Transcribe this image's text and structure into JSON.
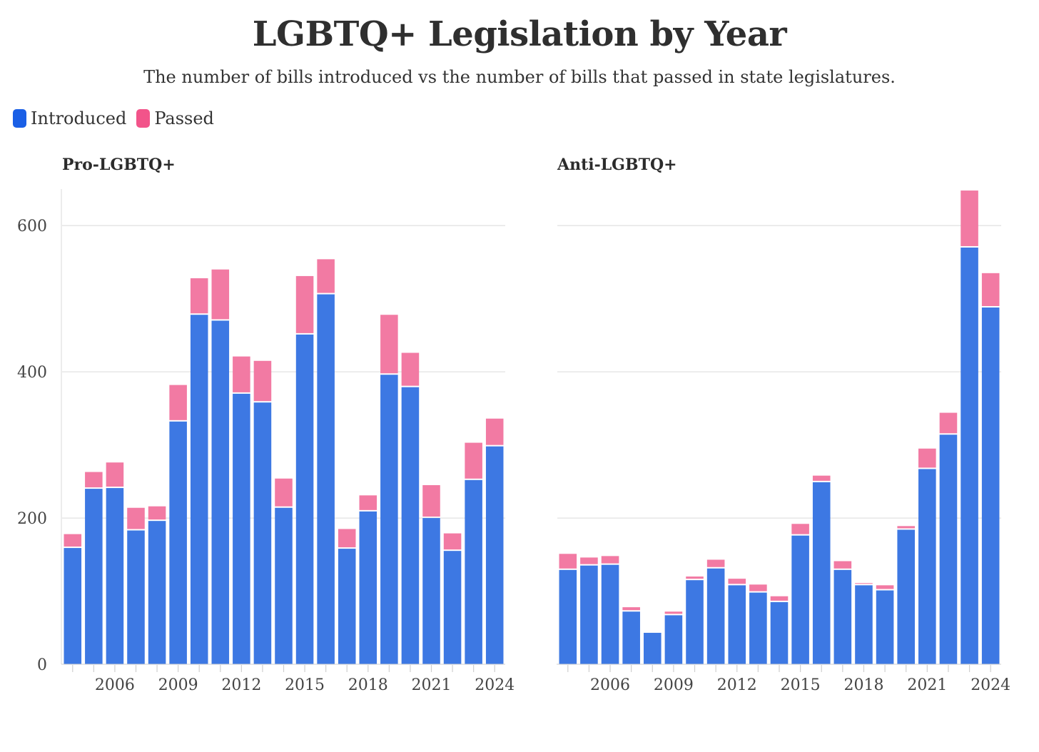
{
  "title": "LGBTQ+ Legislation by Year",
  "subtitle": "The number of bills introduced vs the number of bills that passed in state legislatures.",
  "legend": [
    {
      "label": "Introduced",
      "color": "#1a5fe6"
    },
    {
      "label": "Passed",
      "color": "#f2548a"
    }
  ],
  "colors": {
    "introduced": "#3d78e3",
    "passed": "#f27aa3",
    "grid": "#e6e6e6",
    "axis": "#cfcfcf"
  },
  "chart_data": [
    {
      "type": "bar",
      "stacked": true,
      "title": "Pro-LGBTQ+",
      "x": [
        2004,
        2005,
        2006,
        2007,
        2008,
        2009,
        2010,
        2011,
        2012,
        2013,
        2014,
        2015,
        2016,
        2017,
        2018,
        2019,
        2020,
        2021,
        2022,
        2023,
        2024
      ],
      "series": [
        {
          "name": "Introduced",
          "values": [
            159,
            240,
            241,
            183,
            196,
            332,
            478,
            470,
            370,
            358,
            214,
            451,
            506,
            158,
            209,
            396,
            379,
            200,
            155,
            252,
            298
          ]
        },
        {
          "name": "Passed",
          "values": [
            19,
            23,
            35,
            31,
            20,
            50,
            50,
            70,
            51,
            57,
            40,
            80,
            48,
            27,
            22,
            82,
            47,
            45,
            24,
            51,
            38
          ]
        }
      ],
      "ylim": [
        0,
        650
      ],
      "yticks": [
        0,
        200,
        400,
        600
      ],
      "xticks": [
        "2006",
        "2009",
        "2012",
        "2015",
        "2018",
        "2021",
        "2024"
      ],
      "grid": true
    },
    {
      "type": "bar",
      "stacked": true,
      "title": "Anti-LGBTQ+",
      "x": [
        2004,
        2005,
        2006,
        2007,
        2008,
        2009,
        2010,
        2011,
        2012,
        2013,
        2014,
        2015,
        2016,
        2017,
        2018,
        2019,
        2020,
        2021,
        2022,
        2023,
        2024
      ],
      "series": [
        {
          "name": "Introduced",
          "values": [
            129,
            135,
            136,
            72,
            43,
            67,
            115,
            131,
            108,
            98,
            85,
            176,
            249,
            129,
            108,
            101,
            184,
            267,
            314,
            570,
            488
          ]
        },
        {
          "name": "Passed",
          "values": [
            22,
            11,
            12,
            6,
            2,
            5,
            5,
            12,
            9,
            11,
            8,
            16,
            9,
            12,
            3,
            7,
            5,
            28,
            30,
            78,
            47
          ]
        }
      ],
      "ylim": [
        0,
        650
      ],
      "yticks": [
        0,
        200,
        400,
        600
      ],
      "xticks": [
        "2006",
        "2009",
        "2012",
        "2015",
        "2018",
        "2021",
        "2024"
      ],
      "grid": true
    }
  ]
}
